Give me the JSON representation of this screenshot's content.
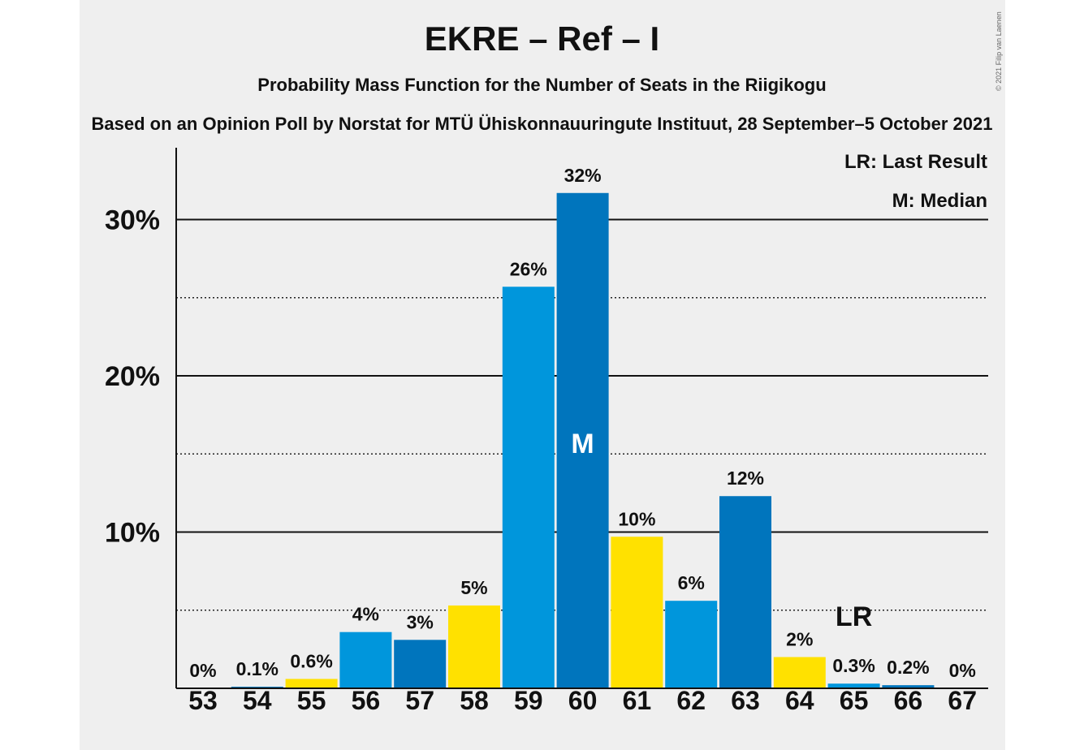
{
  "chart_data": {
    "type": "bar",
    "title": "EKRE – Ref – I",
    "subtitle": "Probability Mass Function for the Number of Seats in the Riigikogu",
    "source": "Based on an Opinion Poll by Norstat for MTÜ Ühiskonnauuringute Instituut, 28 September–5 October 2021",
    "copyright": "© 2021 Filip van Laenen",
    "categories": [
      "53",
      "54",
      "55",
      "56",
      "57",
      "58",
      "59",
      "60",
      "61",
      "62",
      "63",
      "64",
      "65",
      "66",
      "67"
    ],
    "values": [
      0,
      0.1,
      0.6,
      3.6,
      3.1,
      5.3,
      25.7,
      31.7,
      9.7,
      5.6,
      12.3,
      2.0,
      0.3,
      0.2,
      0
    ],
    "data_labels": [
      "0%",
      "0.1%",
      "0.6%",
      "4%",
      "3%",
      "5%",
      "26%",
      "32%",
      "10%",
      "6%",
      "12%",
      "2%",
      "0.3%",
      "0.2%",
      "0%"
    ],
    "bar_colors": [
      "#0096DC",
      "#0075BD",
      "#FFE100",
      "#0096DC",
      "#0075BD",
      "#FFE100",
      "#0096DC",
      "#0075BD",
      "#FFE100",
      "#0096DC",
      "#0075BD",
      "#FFE100",
      "#0096DC",
      "#0075BD",
      "#FFE100"
    ],
    "ylim": [
      0,
      34
    ],
    "yticks_major": [
      10,
      20,
      30
    ],
    "ytick_labels": [
      "10%",
      "20%",
      "30%"
    ],
    "yticks_minor": [
      5,
      15,
      25
    ],
    "median": {
      "category": "60",
      "label": "M"
    },
    "last_result": {
      "category": "65",
      "label": "LR"
    },
    "legend": {
      "last_result": "LR: Last Result",
      "median": "M: Median",
      "placement": "top-right"
    },
    "colors": {
      "marker_on_bar": "#ffffff",
      "text": "#111111",
      "background": "#efefef"
    }
  }
}
